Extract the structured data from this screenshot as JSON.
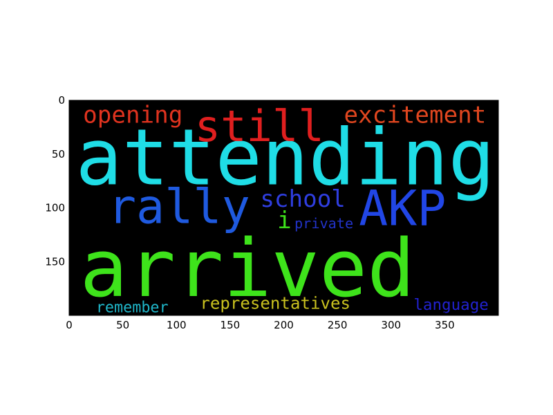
{
  "chart_data": {
    "type": "wordcloud",
    "title": "",
    "xlabel": "",
    "ylabel": "",
    "xlim": [
      0,
      400
    ],
    "ylim": [
      200,
      0
    ],
    "background": "#000000",
    "xticks": [
      0,
      50,
      100,
      150,
      200,
      250,
      300,
      350
    ],
    "yticks": [
      0,
      50,
      100,
      150
    ],
    "words": [
      {
        "text": "attending",
        "x": 6,
        "y": 78,
        "size": 72,
        "color": "#1fdde6"
      },
      {
        "text": "arrived",
        "x": 10,
        "y": 182,
        "size": 74,
        "color": "#3ee31b"
      },
      {
        "text": "still",
        "x": 117,
        "y": 38,
        "size": 40,
        "color": "#e01f1f"
      },
      {
        "text": "opening",
        "x": 13,
        "y": 21,
        "size": 22,
        "color": "#e0331f"
      },
      {
        "text": "excitement",
        "x": 256,
        "y": 21,
        "size": 22,
        "color": "#e0461f"
      },
      {
        "text": "rally",
        "x": 36,
        "y": 114,
        "size": 44,
        "color": "#1f5ae0"
      },
      {
        "text": "school",
        "x": 178,
        "y": 99,
        "size": 22,
        "color": "#2f3ee0"
      },
      {
        "text": "AKP",
        "x": 270,
        "y": 116,
        "size": 45,
        "color": "#2146e6"
      },
      {
        "text": "private",
        "x": 210,
        "y": 119,
        "size": 13,
        "color": "#2233c9"
      },
      {
        "text": "representatives",
        "x": 122,
        "y": 194,
        "size": 15.5,
        "color": "#c9c11f"
      },
      {
        "text": "remember",
        "x": 25,
        "y": 197,
        "size": 14,
        "color": "#1fb6c9"
      },
      {
        "text": "language",
        "x": 321,
        "y": 195,
        "size": 14.5,
        "color": "#2222d0"
      },
      {
        "text": "i",
        "x": 194,
        "y": 119,
        "size": 22,
        "color": "#3ee31b"
      }
    ]
  }
}
